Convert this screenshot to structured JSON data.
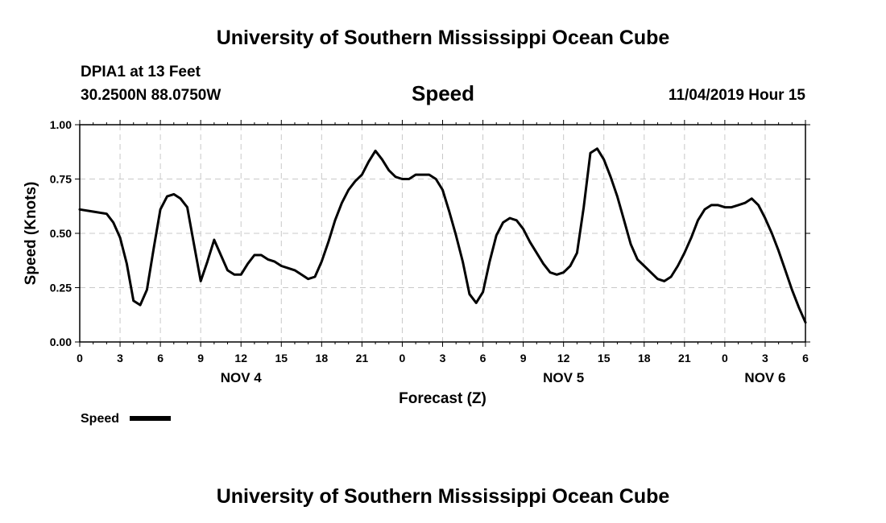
{
  "header": {
    "top_title": "University of Southern Mississippi Ocean Cube",
    "station": "DPIA1 at 13 Feet",
    "coordinates": "30.2500N 88.0750W",
    "plot_title": "Speed",
    "timestamp": "11/04/2019 Hour 15",
    "bottom_title": "University of Southern Mississippi Ocean Cube"
  },
  "legend": {
    "label": "Speed"
  },
  "chart_data": {
    "type": "line",
    "title": "Speed",
    "xlabel": "Forecast (Z)",
    "ylabel": "Speed (Knots)",
    "xlim": [
      0,
      54
    ],
    "ylim": [
      0,
      1
    ],
    "grid": true,
    "legend_position": "bottom-left",
    "yticks": [
      {
        "value": 0,
        "label": "0.00"
      },
      {
        "value": 0.25,
        "label": "0.25"
      },
      {
        "value": 0.5,
        "label": "0.50"
      },
      {
        "value": 0.75,
        "label": "0.75"
      },
      {
        "value": 1,
        "label": "1.00"
      }
    ],
    "xticks": [
      {
        "value": 0,
        "label": "0"
      },
      {
        "value": 3,
        "label": "3"
      },
      {
        "value": 6,
        "label": "6"
      },
      {
        "value": 9,
        "label": "9"
      },
      {
        "value": 12,
        "label": "12"
      },
      {
        "value": 15,
        "label": "15"
      },
      {
        "value": 18,
        "label": "18"
      },
      {
        "value": 21,
        "label": "21"
      },
      {
        "value": 24,
        "label": "0"
      },
      {
        "value": 27,
        "label": "3"
      },
      {
        "value": 30,
        "label": "6"
      },
      {
        "value": 33,
        "label": "9"
      },
      {
        "value": 36,
        "label": "12"
      },
      {
        "value": 39,
        "label": "15"
      },
      {
        "value": 42,
        "label": "18"
      },
      {
        "value": 45,
        "label": "21"
      },
      {
        "value": 48,
        "label": "0"
      },
      {
        "value": 51,
        "label": "3"
      },
      {
        "value": 54,
        "label": "6"
      }
    ],
    "day_labels": [
      {
        "value": 12,
        "label": "NOV 4"
      },
      {
        "value": 36,
        "label": "NOV 5"
      },
      {
        "value": 51,
        "label": "NOV 6"
      }
    ],
    "series": [
      {
        "name": "Speed",
        "color": "#000000",
        "x": [
          0,
          1,
          2,
          2.5,
          3,
          3.5,
          4,
          4.5,
          5,
          5.5,
          6,
          6.5,
          7,
          7.5,
          8,
          8.5,
          9,
          9.5,
          10,
          10.5,
          11,
          11.5,
          12,
          12.5,
          13,
          13.5,
          14,
          14.5,
          15,
          15.5,
          16,
          16.5,
          17,
          17.5,
          18,
          18.5,
          19,
          19.5,
          20,
          20.5,
          21,
          21.5,
          22,
          22.5,
          23,
          23.5,
          24,
          24.5,
          25,
          25.5,
          26,
          26.5,
          27,
          27.5,
          28,
          28.5,
          29,
          29.5,
          30,
          30.5,
          31,
          31.5,
          32,
          32.5,
          33,
          33.5,
          34,
          34.5,
          35,
          35.5,
          36,
          36.5,
          37,
          37.5,
          38,
          38.5,
          39,
          39.5,
          40,
          40.5,
          41,
          41.5,
          42,
          42.5,
          43,
          43.5,
          44,
          44.5,
          45,
          45.5,
          46,
          46.5,
          47,
          47.5,
          48,
          48.5,
          49,
          49.5,
          50,
          50.5,
          51,
          51.5,
          52,
          52.5,
          53,
          53.5,
          54
        ],
        "values": [
          0.61,
          0.6,
          0.59,
          0.55,
          0.48,
          0.36,
          0.19,
          0.17,
          0.24,
          0.43,
          0.61,
          0.67,
          0.68,
          0.66,
          0.62,
          0.45,
          0.28,
          0.37,
          0.47,
          0.4,
          0.33,
          0.31,
          0.31,
          0.36,
          0.4,
          0.4,
          0.38,
          0.37,
          0.35,
          0.34,
          0.33,
          0.31,
          0.29,
          0.3,
          0.37,
          0.46,
          0.56,
          0.64,
          0.7,
          0.74,
          0.77,
          0.83,
          0.88,
          0.84,
          0.79,
          0.76,
          0.75,
          0.75,
          0.77,
          0.77,
          0.77,
          0.75,
          0.7,
          0.6,
          0.49,
          0.37,
          0.22,
          0.18,
          0.23,
          0.37,
          0.49,
          0.55,
          0.57,
          0.56,
          0.52,
          0.46,
          0.41,
          0.36,
          0.32,
          0.31,
          0.32,
          0.35,
          0.41,
          0.62,
          0.87,
          0.89,
          0.84,
          0.76,
          0.67,
          0.56,
          0.45,
          0.38,
          0.35,
          0.32,
          0.29,
          0.28,
          0.3,
          0.35,
          0.41,
          0.48,
          0.56,
          0.61,
          0.63,
          0.63,
          0.62,
          0.62,
          0.63,
          0.64,
          0.66,
          0.63,
          0.57,
          0.5,
          0.42,
          0.33,
          0.24,
          0.16,
          0.09
        ]
      }
    ]
  }
}
